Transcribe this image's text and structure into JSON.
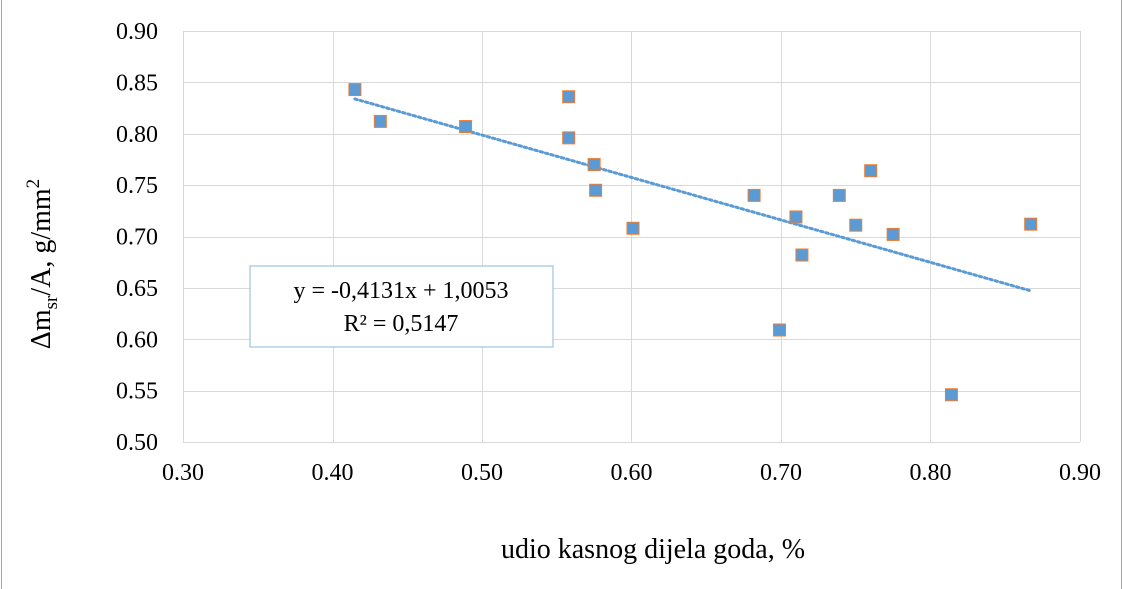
{
  "chart_data": {
    "type": "scatter",
    "title": "",
    "xlabel": "udio kasnog dijela goda, %",
    "ylabel": {
      "prefix": "Δm",
      "subscript": "sr",
      "middle": "/A, g/mm",
      "superscript": "2"
    },
    "xlim": [
      0.3,
      0.9
    ],
    "ylim": [
      0.5,
      0.9
    ],
    "x_ticks": [
      "0.30",
      "0.40",
      "0.50",
      "0.60",
      "0.70",
      "0.80",
      "0.90"
    ],
    "y_ticks": [
      "0.50",
      "0.55",
      "0.60",
      "0.65",
      "0.70",
      "0.75",
      "0.80",
      "0.85",
      "0.90"
    ],
    "grid": true,
    "colors": {
      "marker_fill": "#5b9bd5",
      "marker_edge": "#ed7d31",
      "trendline": "#5b9bd5",
      "grid": "#d9d9d9",
      "frame": "#a6a6a6",
      "equation_border": "#9dc3e6"
    },
    "series": [
      {
        "x": [
          0.415,
          0.432,
          0.489,
          0.558,
          0.558,
          0.575,
          0.576,
          0.601,
          0.682,
          0.699,
          0.71,
          0.714,
          0.739,
          0.75,
          0.76,
          0.775,
          0.814,
          0.867
        ],
        "y": [
          0.843,
          0.812,
          0.807,
          0.836,
          0.796,
          0.77,
          0.745,
          0.708,
          0.74,
          0.609,
          0.719,
          0.682,
          0.74,
          0.711,
          0.764,
          0.702,
          0.546,
          0.712
        ]
      }
    ],
    "trendline": {
      "slope": -0.4131,
      "intercept": 1.0053,
      "x_range": [
        0.415,
        0.867
      ],
      "equation": "y = -0,4131x + 1,0053",
      "r_squared": "R² = 0,5147"
    }
  }
}
